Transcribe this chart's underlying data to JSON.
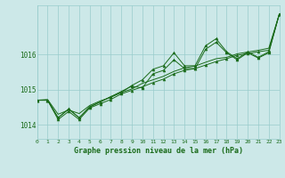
{
  "title": "Graphe pression niveau de la mer (hPa)",
  "bg_color": "#cce8e8",
  "grid_color": "#99cccc",
  "line_color": "#1a6b1a",
  "xlim": [
    0,
    23
  ],
  "ylim": [
    1013.6,
    1017.4
  ],
  "yticks": [
    1014,
    1015,
    1016
  ],
  "xticks": [
    0,
    1,
    2,
    3,
    4,
    5,
    6,
    7,
    8,
    9,
    10,
    11,
    12,
    13,
    14,
    15,
    16,
    17,
    18,
    19,
    20,
    21,
    22,
    23
  ],
  "series_zigzag": [
    1014.7,
    1014.7,
    1014.2,
    1014.45,
    1014.2,
    1014.5,
    1014.65,
    1014.8,
    1014.95,
    1015.1,
    1015.05,
    1015.45,
    1015.55,
    1015.85,
    1015.6,
    1015.6,
    1016.15,
    1016.35,
    1016.05,
    1015.85,
    1016.05,
    1015.9,
    1016.05,
    1017.15
  ],
  "series_smooth": [
    1014.7,
    1014.72,
    1014.3,
    1014.42,
    1014.32,
    1014.55,
    1014.68,
    1014.78,
    1014.92,
    1015.02,
    1015.18,
    1015.28,
    1015.38,
    1015.52,
    1015.62,
    1015.67,
    1015.78,
    1015.88,
    1015.92,
    1016.02,
    1016.07,
    1016.12,
    1016.18,
    1017.15
  ],
  "series_upper": [
    1014.7,
    1014.7,
    1014.2,
    1014.45,
    1014.2,
    1014.52,
    1014.65,
    1014.8,
    1014.92,
    1015.12,
    1015.28,
    1015.58,
    1015.68,
    1016.05,
    1015.68,
    1015.68,
    1016.25,
    1016.45,
    1016.08,
    1015.88,
    1016.08,
    1015.92,
    1016.08,
    1017.15
  ],
  "series_lower": [
    1014.7,
    1014.7,
    1014.15,
    1014.38,
    1014.15,
    1014.48,
    1014.6,
    1014.72,
    1014.88,
    1014.98,
    1015.08,
    1015.2,
    1015.3,
    1015.45,
    1015.55,
    1015.6,
    1015.7,
    1015.8,
    1015.88,
    1015.98,
    1016.02,
    1016.08,
    1016.12,
    1017.15
  ]
}
